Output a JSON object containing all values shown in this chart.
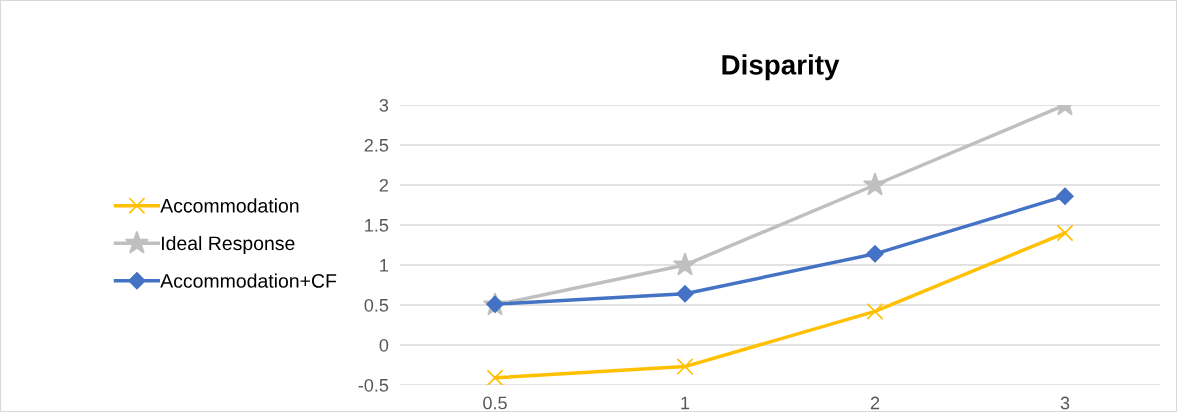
{
  "chart_data": {
    "type": "line",
    "title": "Disparity",
    "categories": [
      "0.5",
      "1",
      "2",
      "3"
    ],
    "series": [
      {
        "name": "Accommodation",
        "color": "#ffc000",
        "marker": "cross",
        "values": [
          -0.41,
          -0.27,
          0.42,
          1.4
        ]
      },
      {
        "name": "Ideal Response",
        "color": "#bfbfbf",
        "marker": "star",
        "values": [
          0.5,
          1,
          2,
          3
        ]
      },
      {
        "name": "Accommodation+CF",
        "color": "#4472c4",
        "marker": "diamond",
        "values": [
          0.51,
          0.64,
          1.14,
          1.86
        ]
      }
    ],
    "ylim": [
      -0.5,
      3
    ],
    "yticks": [
      -0.5,
      0,
      0.5,
      1,
      1.5,
      2,
      2.5,
      3
    ],
    "grid": "y",
    "legend": "left",
    "line_style": "solid"
  }
}
